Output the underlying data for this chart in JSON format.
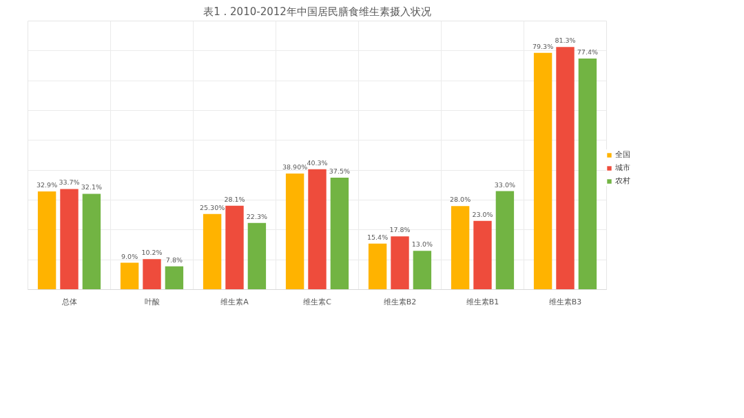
{
  "chart_data": {
    "type": "bar",
    "title": "表1 . 2010-2012年中国居民膳食维生素摄入状况",
    "categories": [
      "总体",
      "叶酸",
      "维生素A",
      "维生素C",
      "维生素B2",
      "维生素B1",
      "维生素B3"
    ],
    "series": [
      {
        "name": "全国",
        "color": "#ffb300",
        "values": [
          32.9,
          9.0,
          25.3,
          38.9,
          15.4,
          28.0,
          79.3
        ],
        "value_labels": [
          "32.9%",
          "9.0%",
          "25.30%",
          "38.90%",
          "15.4%",
          "28.0%",
          "79.3%"
        ]
      },
      {
        "name": "城市",
        "color": "#ee4c3c",
        "values": [
          33.7,
          10.2,
          28.1,
          40.3,
          17.8,
          23.0,
          81.3
        ],
        "value_labels": [
          "33.7%",
          "10.2%",
          "28.1%",
          "40.3%",
          "17.8%",
          "23.0%",
          "81.3%"
        ]
      },
      {
        "name": "农村",
        "color": "#72b443",
        "values": [
          32.1,
          7.8,
          22.3,
          37.5,
          13.0,
          33.0,
          77.4
        ],
        "value_labels": [
          "32.1%",
          "7.8%",
          "22.3%",
          "37.5%",
          "13.0%",
          "33.0%",
          "77.4%"
        ]
      }
    ],
    "ylim": [
      0,
      90
    ],
    "yticks": [
      {
        "value": 0,
        "label": null
      },
      {
        "value": 10,
        "label": null
      },
      {
        "value": 20,
        "label": null
      },
      {
        "value": 30,
        "label": null
      },
      {
        "value": 40,
        "label": null
      },
      {
        "value": 50,
        "label": null
      },
      {
        "value": 60,
        "label": null
      },
      {
        "value": 70,
        "label": null
      },
      {
        "value": 80,
        "label": null
      },
      {
        "value": 90,
        "label": null
      }
    ],
    "tick_labels": "x",
    "grid": true,
    "legend": "right"
  }
}
